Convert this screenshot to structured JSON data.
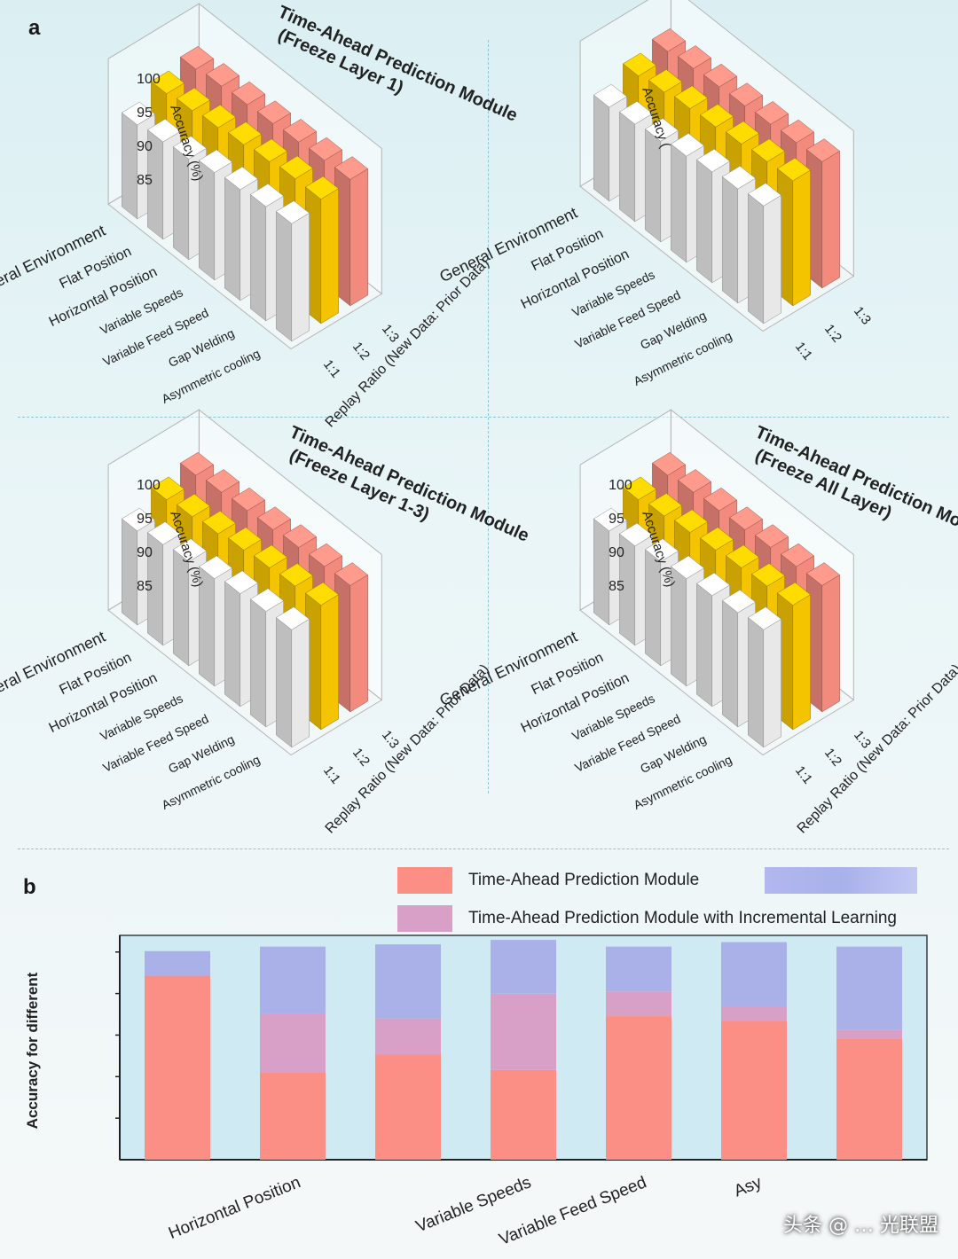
{
  "panel_labels": {
    "a": "a",
    "b": "b"
  },
  "colors": {
    "white_bar": "#e8e8e8",
    "yellow_bar": "#f5c400",
    "red_bar": "#f28a7e",
    "prediction": "#fb8f85",
    "incremental": "#d8a0c6",
    "third": "#aab1e8"
  },
  "chart_data": [
    {
      "type": "bar3d",
      "title": "Time-Ahead Prediction Module\n(Freeze Layer 1)",
      "zlabel": "Accuracy (%)",
      "ylabel": "Replay Ratio (New Data: Prior Data)",
      "categories": [
        "Asymmetric cooling",
        "Gap Welding",
        "Variable Feed Speed",
        "Variable Speeds",
        "Horizontal Position",
        "Flat Position",
        "General Environment"
      ],
      "replay_ratios": [
        "1:1",
        "1:2",
        "1:3"
      ],
      "zticks": [
        "85",
        "90",
        "95",
        "100"
      ],
      "zlim": [
        85,
        100
      ],
      "series": [
        {
          "name": "1:1",
          "values": [
            98.5,
            98.0,
            97.5,
            97.0,
            96.0,
            95.5,
            95.0
          ]
        },
        {
          "name": "1:2",
          "values": [
            99.5,
            99.5,
            99.0,
            98.5,
            98.0,
            97.5,
            97.0
          ]
        },
        {
          "name": "1:3",
          "values": [
            99.8,
            99.6,
            99.3,
            99.0,
            98.8,
            98.5,
            98.0
          ]
        }
      ]
    },
    {
      "type": "bar3d",
      "title": "",
      "zlabel": "Accuracy (",
      "ylabel": "",
      "categories": [
        "Asymmetric cooling",
        "Gap Welding",
        "Variable Feed Speed",
        "Variable Speeds",
        "Horizontal Position",
        "Flat Position",
        "General Environment"
      ],
      "replay_ratios": [
        "1:1",
        "1:2",
        "1:3"
      ],
      "zticks": [],
      "zlim": [
        85,
        100
      ],
      "series": [
        {
          "name": "1:1",
          "values": [
            98.5,
            98.0,
            97.5,
            96.8,
            96.0,
            95.5,
            95.0
          ]
        },
        {
          "name": "1:2",
          "values": [
            99.6,
            99.4,
            99.0,
            98.5,
            98.2,
            97.6,
            97.0
          ]
        },
        {
          "name": "1:3",
          "values": [
            99.8,
            99.6,
            99.3,
            99.0,
            98.8,
            98.5,
            98.0
          ]
        }
      ]
    },
    {
      "type": "bar3d",
      "title": "Time-Ahead Prediction Module\n(Freeze Layer 1-3)",
      "zlabel": "Accuracy (%)",
      "ylabel": "Replay Ratio (New Data: Prior Data)",
      "categories": [
        "Asymmetric cooling",
        "Gap Welding",
        "Variable Feed Speed",
        "Variable Speeds",
        "Horizontal Position",
        "Flat Position",
        "General Environment"
      ],
      "replay_ratios": [
        "1:1",
        "1:2",
        "1:3"
      ],
      "zticks": [
        "85",
        "90",
        "95",
        "100"
      ],
      "zlim": [
        85,
        100
      ],
      "series": [
        {
          "name": "1:1",
          "values": [
            98.5,
            98.2,
            97.8,
            97.0,
            96.5,
            96.0,
            95.0
          ]
        },
        {
          "name": "1:2",
          "values": [
            99.5,
            99.3,
            99.0,
            98.6,
            98.0,
            97.5,
            97.0
          ]
        },
        {
          "name": "1:3",
          "values": [
            99.8,
            99.6,
            99.4,
            99.0,
            98.8,
            98.5,
            98.0
          ]
        }
      ]
    },
    {
      "type": "bar3d",
      "title": "Time-Ahead Prediction Module\n(Freeze All Layer)",
      "zlabel": "Accuracy (%)",
      "ylabel": "Replay Ratio (New Data: Prior Data)",
      "categories": [
        "Asymmetric cooling",
        "Gap Welding",
        "Variable Feed Speed",
        "Variable Speeds",
        "Horizontal Position",
        "Flat Position",
        "General Environment"
      ],
      "replay_ratios": [
        "1:1",
        "1:2",
        "1:3"
      ],
      "zticks": [
        "85",
        "90",
        "95",
        "100"
      ],
      "zlim": [
        85,
        100
      ],
      "series": [
        {
          "name": "1:1",
          "values": [
            98.5,
            98.0,
            97.5,
            97.0,
            96.5,
            95.8,
            95.0
          ]
        },
        {
          "name": "1:2",
          "values": [
            99.5,
            99.3,
            99.0,
            98.6,
            98.2,
            97.6,
            97.0
          ]
        },
        {
          "name": "1:3",
          "values": [
            99.8,
            99.6,
            99.4,
            99.0,
            98.8,
            98.5,
            98.0
          ]
        }
      ]
    },
    {
      "type": "bar",
      "stacked": true,
      "ylabel": "Accuracy for different",
      "categories": [
        "",
        "Horizontal Position",
        "",
        "Variable Speeds",
        "Variable Feed Speed",
        "Asy",
        ""
      ],
      "ylim": [
        0,
        1
      ],
      "series": [
        {
          "name": "Time-Ahead Prediction Module",
          "values": [
            0.82,
            0.39,
            0.47,
            0.4,
            0.64,
            0.62,
            0.54
          ]
        },
        {
          "name": "Time-Ahead Prediction Module with Incremental Learning",
          "values": [
            0.0,
            0.26,
            0.16,
            0.34,
            0.11,
            0.06,
            0.04
          ]
        },
        {
          "name": "",
          "values": [
            0.11,
            0.3,
            0.33,
            0.24,
            0.2,
            0.29,
            0.37
          ]
        }
      ]
    }
  ],
  "watermark": "头条 @ … 光联盟"
}
